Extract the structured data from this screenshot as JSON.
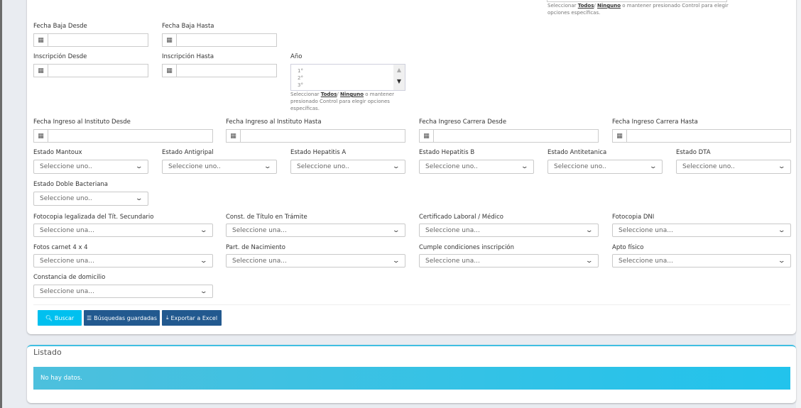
{
  "help_text": {
    "prefix": "Seleccionar ",
    "all": "Todos",
    "sep": "/ ",
    "none": "Ninguno",
    "suffix": " o mantener presionado Control para elegir opciones específicas."
  },
  "fields": {
    "fecha_baja_desde": "Fecha Baja Desde",
    "fecha_baja_hasta": "Fecha Baja Hasta",
    "inscripcion_desde": "Inscripción Desde",
    "inscripcion_hasta": "Inscripción Hasta",
    "anio": {
      "label": "Año",
      "options": [
        "1°",
        "2°",
        "3°"
      ]
    },
    "ingreso_instituto_desde": "Fecha Ingreso al Instituto Desde",
    "ingreso_instituto_hasta": "Fecha Ingreso al Instituto Hasta",
    "ingreso_carrera_desde": "Fecha Ingreso Carrera Desde",
    "ingreso_carrera_hasta": "Fecha Ingreso Carrera Hasta",
    "estado_mantoux": "Estado Mantoux",
    "estado_antigripal": "Estado Antigripal",
    "estado_hepatitis_a": "Estado Hepatitis A",
    "estado_hepatitis_b": "Estado Hepatitis B",
    "estado_antitetanica": "Estado Antitetanica",
    "estado_dta": "Estado DTA",
    "estado_doble_bacteriana": "Estado Doble Bacteriana",
    "fotocopia_titulo": "Fotocopia legalizada del Tít. Secundario",
    "const_titulo": "Const. de Título en Trámite",
    "certificado": "Certificado Laboral / Médico",
    "fotocopia_dni": "Fotocopia DNI",
    "fotos_carnet": "Fotos carnet 4 x 4",
    "part_nacimiento": "Part. de Nacimiento",
    "cumple_condiciones": "Cumple condiciones inscripción",
    "apto_fisico": "Apto físico",
    "constancia_domicilio": "Constancia de domicilio"
  },
  "placeholders": {
    "uno": "Seleccione uno..",
    "una": "Seleccione una..."
  },
  "buttons": {
    "buscar": "Buscar",
    "busquedas": "Búsquedas guardadas",
    "exportar": "Exportar a Excel"
  },
  "listado": {
    "title": "Listado",
    "empty": "No hay datos."
  },
  "colors": {
    "buscar": "#00c0ef",
    "dark": "#22598f",
    "alert": "#45c1e0"
  }
}
